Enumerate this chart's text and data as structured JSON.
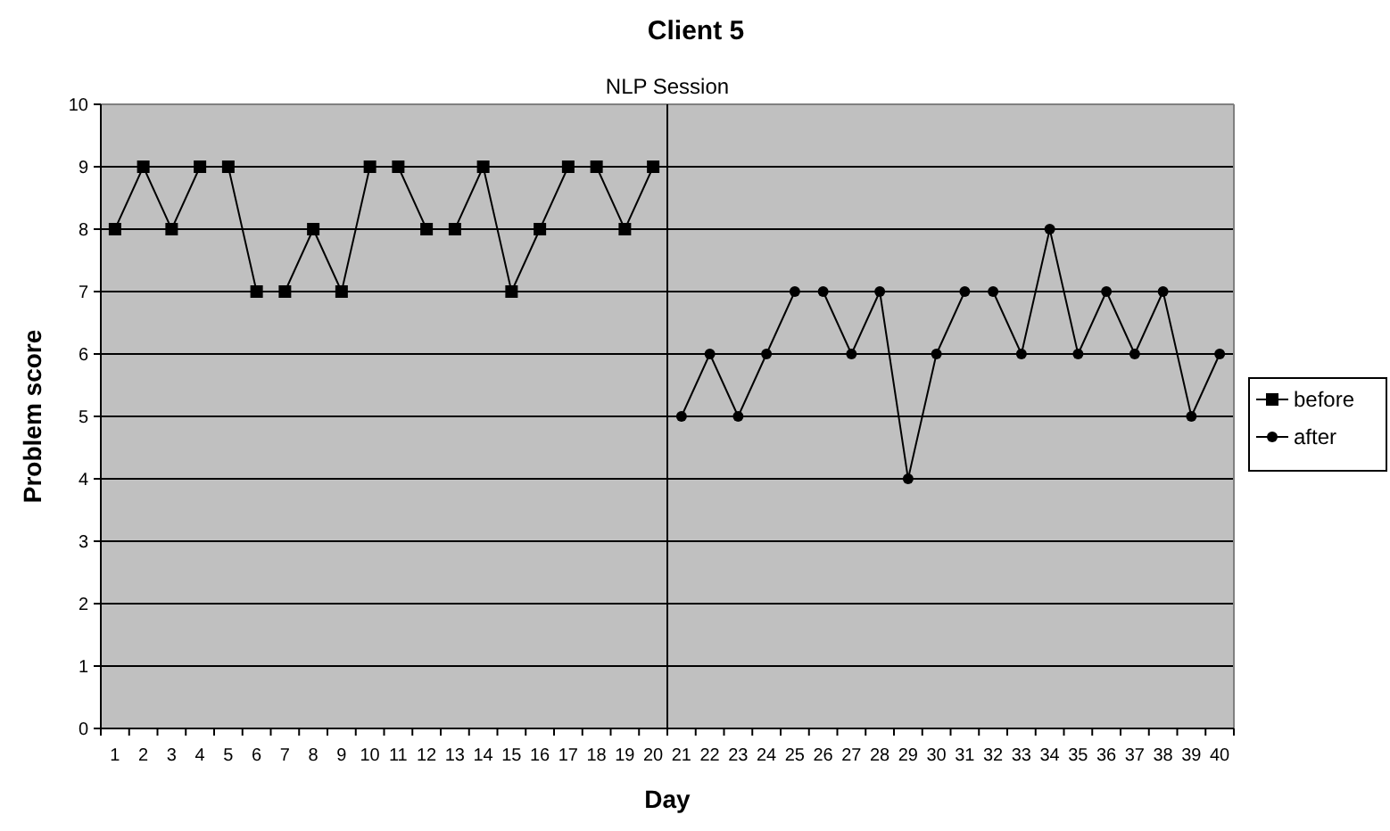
{
  "chart_data": {
    "type": "line",
    "title": "Client 5",
    "xlabel": "Day",
    "ylabel": "Problem score",
    "xlim": [
      0.5,
      40.5
    ],
    "xticks": [
      {
        "value": 0.5,
        "label": null
      },
      1,
      {
        "value": 1.5,
        "label": null
      },
      2,
      {
        "value": 2.5,
        "label": null
      },
      3,
      {
        "value": 3.5,
        "label": null
      },
      4,
      {
        "value": 4.5,
        "label": null
      },
      5,
      {
        "value": 5.5,
        "label": null
      },
      6,
      {
        "value": 6.5,
        "label": null
      },
      7,
      {
        "value": 7.5,
        "label": null
      },
      8,
      {
        "value": 8.5,
        "label": null
      },
      9,
      {
        "value": 9.5,
        "label": null
      },
      10,
      {
        "value": 10.5,
        "label": null
      },
      11,
      {
        "value": 11.5,
        "label": null
      },
      12,
      {
        "value": 12.5,
        "label": null
      },
      13,
      {
        "value": 13.5,
        "label": null
      },
      14,
      {
        "value": 14.5,
        "label": null
      },
      15,
      {
        "value": 15.5,
        "label": null
      },
      16,
      {
        "value": 16.5,
        "label": null
      },
      17,
      {
        "value": 17.5,
        "label": null
      },
      18,
      {
        "value": 18.5,
        "label": null
      },
      19,
      {
        "value": 19.5,
        "label": null
      },
      20,
      {
        "value": 20.5,
        "label": null
      },
      21,
      {
        "value": 21.5,
        "label": null
      },
      22,
      {
        "value": 22.5,
        "label": null
      },
      23,
      {
        "value": 23.5,
        "label": null
      },
      24,
      {
        "value": 24.5,
        "label": null
      },
      25,
      {
        "value": 25.5,
        "label": null
      },
      26,
      {
        "value": 26.5,
        "label": null
      },
      27,
      {
        "value": 27.5,
        "label": null
      },
      28,
      {
        "value": 28.5,
        "label": null
      },
      29,
      {
        "value": 29.5,
        "label": null
      },
      30,
      {
        "value": 30.5,
        "label": null
      },
      31,
      {
        "value": 31.5,
        "label": null
      },
      32,
      {
        "value": 32.5,
        "label": null
      },
      33,
      {
        "value": 33.5,
        "label": null
      },
      34,
      {
        "value": 34.5,
        "label": null
      },
      35,
      {
        "value": 35.5,
        "label": null
      },
      36,
      {
        "value": 36.5,
        "label": null
      },
      37,
      {
        "value": 37.5,
        "label": null
      },
      38,
      {
        "value": 38.5,
        "label": null
      },
      39,
      {
        "value": 39.5,
        "label": null
      },
      40,
      {
        "value": 40.5,
        "label": null
      }
    ],
    "ylim": [
      0,
      10
    ],
    "yticks": [
      0,
      1,
      2,
      3,
      4,
      5,
      6,
      7,
      8,
      9,
      10
    ],
    "grid": "y",
    "legend": "right",
    "series": [
      {
        "name": "before",
        "color": "#000000",
        "marker": "square",
        "x": [
          1,
          2,
          3,
          4,
          5,
          6,
          7,
          8,
          9,
          10,
          11,
          12,
          13,
          14,
          15,
          16,
          17,
          18,
          19,
          20
        ],
        "values": [
          8,
          9,
          8,
          9,
          9,
          7,
          7,
          8,
          7,
          9,
          9,
          8,
          8,
          9,
          7,
          8,
          9,
          9,
          8,
          9
        ]
      },
      {
        "name": "after",
        "color": "#000000",
        "marker": "circle",
        "x": [
          21,
          22,
          23,
          24,
          25,
          26,
          27,
          28,
          29,
          30,
          31,
          32,
          33,
          34,
          35,
          36,
          37,
          38,
          39,
          40
        ],
        "values": [
          5,
          6,
          5,
          6,
          7,
          7,
          6,
          7,
          4,
          6,
          7,
          7,
          6,
          8,
          6,
          7,
          6,
          7,
          5,
          6
        ]
      }
    ],
    "ref_lines": [
      {
        "axis": "x",
        "value": 20.5,
        "label": "NLP Session",
        "color": "#000000"
      }
    ]
  }
}
